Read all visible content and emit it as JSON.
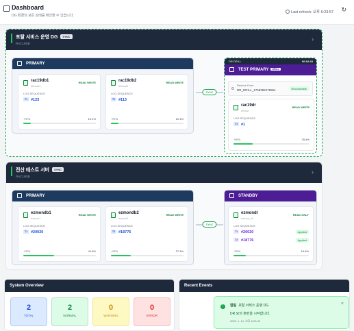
{
  "header": {
    "title": "Dashboard",
    "subtitle": "DG 환경의 모든 상태를 확인할 수 있습니다.",
    "refresh_text": "Last refresh: 오후 6:23:57",
    "refresh_icon": "refresh-icon"
  },
  "sections": [
    {
      "title": "포탈 서비스 운영 DG",
      "badge": "SYNC",
      "id": "RAC19DB",
      "primary": {
        "label": "PRIMARY",
        "nodes": [
          {
            "name": "rac19db1",
            "sub": "dbhost1",
            "role": "READ WRITE",
            "log_label": "LOG SEQUENCE",
            "seq_tag": "T1",
            "seq": "#123",
            "rpo": "+RPA",
            "pct": "10.1%",
            "progress": 0.1
          },
          {
            "name": "rac19db2",
            "sub": "dbhost2",
            "role": "READ WRITE",
            "log_label": "LOG SEQUENCE",
            "seq_tag": "T2",
            "seq": "#113",
            "rpo": "+RPA",
            "pct": "10.1%",
            "progress": 0.1
          }
        ]
      },
      "link_label": "SYNC",
      "drill": {
        "label": "DR DRILL",
        "timer": "00:02:43",
        "group_label": "TEST PRIMARY",
        "group_badge": "DRILL",
        "restore_label": "Restore Point",
        "restore_value": "DR_DRILL_1768382478561",
        "restore_badge": "Recoverable",
        "node": {
          "name": "rac19dr",
          "sub": "drhost",
          "role": "READ WRITE",
          "log_label": "LOG SEQUENCE",
          "seq_tag": "T1",
          "seq": "#1",
          "rpo": "+RPA",
          "pct": "25.4%",
          "progress": 0.25
        }
      }
    },
    {
      "title": "전산 테스트 서버",
      "badge": "SYNC",
      "id": "RAC19DB",
      "primary": {
        "label": "PRIMARY",
        "nodes": [
          {
            "name": "ezmondb1",
            "sub": "ezmon1",
            "role": "READ WRITE",
            "log_label": "LOG SEQUENCE",
            "seq_tag": "T1",
            "seq": "#20020",
            "rpo": "+RPA",
            "pct": "41.8%",
            "progress": 0.42
          },
          {
            "name": "ezmondb2",
            "sub": "ezmon2",
            "role": "READ WRITE",
            "log_label": "LOG SEQUENCE",
            "seq_tag": "T2",
            "seq": "#18776",
            "rpo": "+RPA",
            "pct": "27.4%",
            "progress": 0.27
          }
        ]
      },
      "link_label": "SYNC",
      "standby": {
        "label": "STANDBY",
        "node": {
          "name": "ezmondr",
          "sub": "ezmon_dr",
          "role": "READ ONLY",
          "log_label": "LOG SEQUENCE",
          "seqs": [
            {
              "tag": "T1",
              "seq": "#20020",
              "status": "Applied"
            },
            {
              "tag": "T2",
              "seq": "#18776",
              "status": "Applied"
            }
          ],
          "rpo": "+RPA",
          "pct": "15.6%",
          "progress": 0.16
        }
      }
    }
  ],
  "overview": {
    "title": "System Overview",
    "stats": [
      {
        "value": "2",
        "label": "TOTAL",
        "bg": "#dbeafe",
        "fg": "#1d4ed8"
      },
      {
        "value": "2",
        "label": "NORMAL",
        "bg": "#dcfce7",
        "fg": "#15803d"
      },
      {
        "value": "0",
        "label": "WARNING",
        "bg": "#fef9c3",
        "fg": "#ca8a04"
      },
      {
        "value": "0",
        "label": "ERROR",
        "bg": "#fee2e2",
        "fg": "#dc2626"
      }
    ]
  },
  "events": {
    "title": "Recent Events"
  },
  "toast": {
    "title": "알림",
    "target": "포탈 서비스 운영 DG",
    "message": "DR 모의 훈련을 시작합니다.",
    "time": "2026. 1. 14. 오후 6:23:43"
  }
}
